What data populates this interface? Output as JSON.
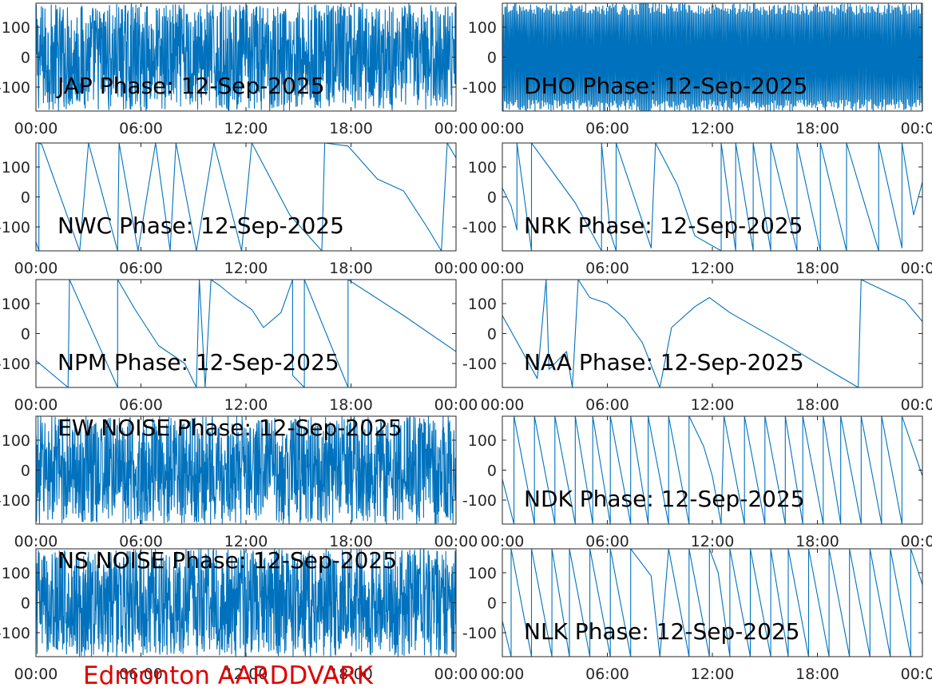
{
  "footer": {
    "label": "Edmonton AARDDVARK",
    "color": "#e00000"
  },
  "style": {
    "trace_color": "#0072bd",
    "axis_color": "#262626",
    "title_color": "#000000"
  },
  "chart_data": [
    {
      "type": "line",
      "title": "JAP Phase: 12-Sep-2025",
      "xlabel": "",
      "ylabel": "",
      "x_ticks": [
        "00:00",
        "06:00",
        "12:00",
        "18:00",
        "00:00"
      ],
      "y_ticks": [
        -100,
        0,
        100
      ],
      "xlim": [
        "00:00",
        "24:00"
      ],
      "ylim": [
        -180,
        180
      ],
      "pattern": "noise",
      "grid": false
    },
    {
      "type": "line",
      "title": "DHO Phase: 12-Sep-2025",
      "xlabel": "",
      "ylabel": "",
      "x_ticks": [
        "00:00",
        "06:00",
        "12:00",
        "18:00",
        "00:00"
      ],
      "y_ticks": [
        -100,
        0,
        100
      ],
      "xlim": [
        "00:00",
        "24:00"
      ],
      "ylim": [
        -180,
        180
      ],
      "pattern": "fast-wrap",
      "grid": false
    },
    {
      "type": "line",
      "title": "NWC Phase: 12-Sep-2025",
      "xlabel": "",
      "ylabel": "",
      "x_ticks": [
        "00:00",
        "06:00",
        "12:00",
        "18:00",
        "00:00"
      ],
      "y_ticks": [
        -100,
        0,
        100
      ],
      "xlim": [
        "00:00",
        "24:00"
      ],
      "ylim": [
        -180,
        180
      ],
      "pattern": "sawtooth",
      "points": [
        [
          "00:00",
          -150
        ],
        [
          "00:10",
          -180
        ],
        [
          "00:10",
          180
        ],
        [
          "00:20",
          175
        ],
        [
          "02:30",
          -180
        ],
        [
          "03:00",
          180
        ],
        [
          "04:40",
          -180
        ],
        [
          "04:45",
          180
        ],
        [
          "05:50",
          -180
        ],
        [
          "06:50",
          180
        ],
        [
          "07:40",
          -180
        ],
        [
          "08:00",
          180
        ],
        [
          "09:10",
          -180
        ],
        [
          "10:10",
          180
        ],
        [
          "11:45",
          -180
        ],
        [
          "12:20",
          180
        ],
        [
          "14:30",
          -60
        ],
        [
          "16:20",
          -180
        ],
        [
          "16:30",
          180
        ],
        [
          "17:50",
          170
        ],
        [
          "19:30",
          60
        ],
        [
          "21:00",
          20
        ],
        [
          "22:20",
          -100
        ],
        [
          "23:10",
          -180
        ],
        [
          "23:30",
          180
        ],
        [
          "24:00",
          130
        ]
      ]
    },
    {
      "type": "line",
      "title": "NRK Phase: 12-Sep-2025",
      "xlabel": "",
      "ylabel": "",
      "x_ticks": [
        "00:00",
        "06:00",
        "12:00",
        "18:00",
        "00:00"
      ],
      "y_ticks": [
        -100,
        0,
        100
      ],
      "xlim": [
        "00:00",
        "24:00"
      ],
      "ylim": [
        -180,
        180
      ],
      "pattern": "sawtooth",
      "points": [
        [
          "00:00",
          30
        ],
        [
          "00:30",
          -30
        ],
        [
          "00:50",
          -110
        ],
        [
          "00:50",
          180
        ],
        [
          "01:40",
          -180
        ],
        [
          "01:40",
          180
        ],
        [
          "03:10",
          60
        ],
        [
          "04:10",
          -20
        ],
        [
          "05:40",
          -180
        ],
        [
          "05:40",
          180
        ],
        [
          "06:10",
          -120
        ],
        [
          "06:30",
          -180
        ],
        [
          "06:30",
          180
        ],
        [
          "08:30",
          -170
        ],
        [
          "08:45",
          180
        ],
        [
          "10:00",
          40
        ],
        [
          "11:00",
          -130
        ],
        [
          "12:30",
          -180
        ],
        [
          "12:30",
          180
        ],
        [
          "13:20",
          -180
        ],
        [
          "13:20",
          180
        ],
        [
          "14:20",
          -180
        ],
        [
          "14:20",
          180
        ],
        [
          "15:20",
          -180
        ],
        [
          "15:20",
          180
        ],
        [
          "16:50",
          -180
        ],
        [
          "16:50",
          180
        ],
        [
          "18:10",
          -180
        ],
        [
          "18:10",
          180
        ],
        [
          "19:40",
          -180
        ],
        [
          "19:40",
          180
        ],
        [
          "21:30",
          -180
        ],
        [
          "21:30",
          180
        ],
        [
          "22:50",
          -170
        ],
        [
          "22:50",
          180
        ],
        [
          "23:30",
          -60
        ],
        [
          "24:00",
          50
        ]
      ]
    },
    {
      "type": "line",
      "title": "NPM Phase: 12-Sep-2025",
      "xlabel": "",
      "ylabel": "",
      "x_ticks": [
        "00:00",
        "06:00",
        "12:00",
        "18:00",
        "00:00"
      ],
      "y_ticks": [
        -100,
        0,
        100
      ],
      "xlim": [
        "00:00",
        "24:00"
      ],
      "ylim": [
        -180,
        180
      ],
      "pattern": "sawtooth",
      "points": [
        [
          "00:00",
          -90
        ],
        [
          "01:50",
          -180
        ],
        [
          "01:55",
          180
        ],
        [
          "04:40",
          -180
        ],
        [
          "04:40",
          180
        ],
        [
          "05:40",
          80
        ],
        [
          "07:00",
          -40
        ],
        [
          "08:30",
          -100
        ],
        [
          "09:10",
          -180
        ],
        [
          "09:20",
          180
        ],
        [
          "09:40",
          -180
        ],
        [
          "10:00",
          180
        ],
        [
          "10:30",
          160
        ],
        [
          "11:20",
          120
        ],
        [
          "12:20",
          80
        ],
        [
          "13:00",
          20
        ],
        [
          "14:00",
          70
        ],
        [
          "14:40",
          180
        ],
        [
          "14:40",
          -140
        ],
        [
          "15:20",
          -180
        ],
        [
          "15:20",
          180
        ],
        [
          "17:50",
          -180
        ],
        [
          "17:50",
          180
        ],
        [
          "21:00",
          60
        ],
        [
          "24:00",
          -60
        ]
      ]
    },
    {
      "type": "line",
      "title": "NAA Phase: 12-Sep-2025",
      "xlabel": "",
      "ylabel": "",
      "x_ticks": [
        "00:00",
        "06:00",
        "12:00",
        "18:00",
        "00:00"
      ],
      "y_ticks": [
        -100,
        0,
        100
      ],
      "xlim": [
        "00:00",
        "24:00"
      ],
      "ylim": [
        -180,
        180
      ],
      "pattern": "sawtooth",
      "points": [
        [
          "00:00",
          60
        ],
        [
          "02:00",
          -150
        ],
        [
          "02:30",
          180
        ],
        [
          "02:40",
          -120
        ],
        [
          "03:40",
          -60
        ],
        [
          "04:00",
          -180
        ],
        [
          "04:20",
          180
        ],
        [
          "05:00",
          120
        ],
        [
          "06:00",
          100
        ],
        [
          "07:00",
          50
        ],
        [
          "08:00",
          -30
        ],
        [
          "09:00",
          -180
        ],
        [
          "09:40",
          20
        ],
        [
          "11:00",
          90
        ],
        [
          "11:50",
          120
        ],
        [
          "13:00",
          70
        ],
        [
          "16:00",
          -30
        ],
        [
          "18:00",
          -100
        ],
        [
          "20:20",
          -180
        ],
        [
          "20:30",
          180
        ],
        [
          "23:00",
          110
        ],
        [
          "24:00",
          40
        ]
      ]
    },
    {
      "type": "line",
      "title": "EW NOISE Phase: 12-Sep-2025",
      "xlabel": "",
      "ylabel": "",
      "x_ticks": [
        "00:00",
        "06:00",
        "12:00",
        "18:00",
        "00:00"
      ],
      "y_ticks": [
        -100,
        0,
        100
      ],
      "xlim": [
        "00:00",
        "24:00"
      ],
      "ylim": [
        -180,
        180
      ],
      "pattern": "noise",
      "grid": false
    },
    {
      "type": "line",
      "title": "NDK Phase: 12-Sep-2025",
      "xlabel": "",
      "ylabel": "",
      "x_ticks": [
        "00:00",
        "06:00",
        "12:00",
        "18:00",
        "00:00"
      ],
      "y_ticks": [
        -100,
        0,
        100
      ],
      "xlim": [
        "00:00",
        "24:00"
      ],
      "ylim": [
        -180,
        180
      ],
      "pattern": "sawtooth",
      "points": [
        [
          "00:00",
          -30
        ],
        [
          "00:40",
          -180
        ],
        [
          "00:40",
          180
        ],
        [
          "01:50",
          -180
        ],
        [
          "01:50",
          180
        ],
        [
          "03:00",
          -180
        ],
        [
          "03:00",
          180
        ],
        [
          "04:10",
          -180
        ],
        [
          "04:10",
          180
        ],
        [
          "05:10",
          -180
        ],
        [
          "05:10",
          180
        ],
        [
          "06:10",
          -180
        ],
        [
          "06:10",
          180
        ],
        [
          "07:20",
          -180
        ],
        [
          "07:20",
          180
        ],
        [
          "08:20",
          -180
        ],
        [
          "08:20",
          180
        ],
        [
          "09:30",
          -180
        ],
        [
          "09:30",
          180
        ],
        [
          "10:40",
          -180
        ],
        [
          "10:40",
          180
        ],
        [
          "11:30",
          80
        ],
        [
          "12:00",
          -20
        ],
        [
          "12:30",
          -180
        ],
        [
          "12:40",
          180
        ],
        [
          "13:50",
          -180
        ],
        [
          "13:50",
          180
        ],
        [
          "15:00",
          -180
        ],
        [
          "15:00",
          180
        ],
        [
          "16:10",
          -180
        ],
        [
          "16:10",
          180
        ],
        [
          "17:10",
          -180
        ],
        [
          "17:10",
          180
        ],
        [
          "18:20",
          -180
        ],
        [
          "18:20",
          180
        ],
        [
          "19:20",
          -180
        ],
        [
          "19:20",
          180
        ],
        [
          "20:30",
          -180
        ],
        [
          "20:30",
          180
        ],
        [
          "21:40",
          -180
        ],
        [
          "21:40",
          180
        ],
        [
          "22:50",
          -180
        ],
        [
          "22:50",
          180
        ],
        [
          "24:00",
          -20
        ]
      ]
    },
    {
      "type": "line",
      "title": "NS NOISE Phase: 12-Sep-2025",
      "xlabel": "",
      "ylabel": "",
      "x_ticks": [
        "00:00",
        "06:00",
        "12:00",
        "18:00",
        "00:00"
      ],
      "y_ticks": [
        -100,
        0,
        100
      ],
      "xlim": [
        "00:00",
        "24:00"
      ],
      "ylim": [
        -180,
        180
      ],
      "pattern": "noise",
      "grid": false
    },
    {
      "type": "line",
      "title": "NLK Phase: 12-Sep-2025",
      "xlabel": "",
      "ylabel": "",
      "x_ticks": [
        "00:00",
        "06:00",
        "12:00",
        "18:00",
        "00:00"
      ],
      "y_ticks": [
        -100,
        0,
        100
      ],
      "xlim": [
        "00:00",
        "24:00"
      ],
      "ylim": [
        -180,
        180
      ],
      "pattern": "sawtooth",
      "points": [
        [
          "00:00",
          -60
        ],
        [
          "00:30",
          -180
        ],
        [
          "00:30",
          180
        ],
        [
          "01:40",
          -180
        ],
        [
          "01:40",
          180
        ],
        [
          "02:50",
          -180
        ],
        [
          "02:50",
          180
        ],
        [
          "03:50",
          -180
        ],
        [
          "03:50",
          180
        ],
        [
          "05:00",
          -180
        ],
        [
          "05:00",
          180
        ],
        [
          "06:10",
          -180
        ],
        [
          "06:10",
          180
        ],
        [
          "07:20",
          -180
        ],
        [
          "07:20",
          180
        ],
        [
          "08:30",
          90
        ],
        [
          "09:00",
          -180
        ],
        [
          "09:30",
          180
        ],
        [
          "10:40",
          -180
        ],
        [
          "10:40",
          180
        ],
        [
          "11:50",
          -180
        ],
        [
          "11:50",
          180
        ],
        [
          "12:20",
          100
        ],
        [
          "13:00",
          -180
        ],
        [
          "13:00",
          180
        ],
        [
          "14:10",
          -180
        ],
        [
          "14:10",
          180
        ],
        [
          "15:20",
          -180
        ],
        [
          "15:20",
          180
        ],
        [
          "16:20",
          -180
        ],
        [
          "16:20",
          180
        ],
        [
          "17:30",
          -180
        ],
        [
          "17:30",
          180
        ],
        [
          "18:40",
          -180
        ],
        [
          "18:40",
          180
        ],
        [
          "19:50",
          -180
        ],
        [
          "19:50",
          180
        ],
        [
          "21:00",
          -180
        ],
        [
          "21:00",
          180
        ],
        [
          "22:10",
          -180
        ],
        [
          "22:10",
          180
        ],
        [
          "23:20",
          -180
        ],
        [
          "23:20",
          180
        ],
        [
          "24:00",
          60
        ]
      ]
    }
  ]
}
